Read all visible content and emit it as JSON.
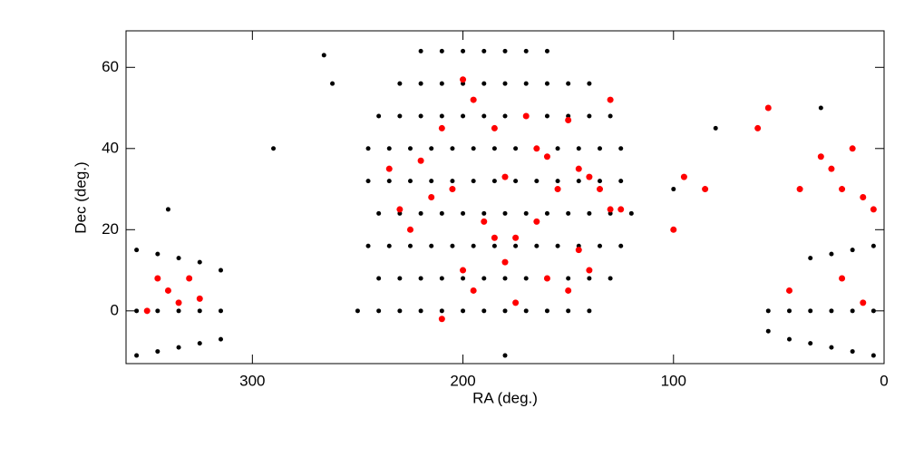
{
  "chart_data": {
    "type": "scatter",
    "x_label": "RA (deg.)",
    "y_label": "Dec (deg.)",
    "xlim": [
      360,
      0
    ],
    "xticks": [
      300,
      200,
      100,
      0
    ],
    "ylim": [
      -13,
      69
    ],
    "yticks": [
      0,
      20,
      40,
      60
    ],
    "grid": false,
    "series": [
      {
        "color": "#000000",
        "x": [
          160,
          170,
          180,
          190,
          200,
          210,
          220,
          140,
          150,
          160,
          170,
          180,
          190,
          200,
          210,
          220,
          230,
          130,
          140,
          150,
          160,
          170,
          180,
          190,
          200,
          210,
          220,
          230,
          240,
          125,
          135,
          145,
          155,
          165,
          175,
          185,
          195,
          205,
          215,
          225,
          235,
          245,
          125,
          135,
          145,
          155,
          165,
          175,
          185,
          195,
          205,
          215,
          225,
          235,
          245,
          120,
          130,
          140,
          150,
          160,
          170,
          180,
          190,
          200,
          210,
          220,
          230,
          240,
          125,
          135,
          145,
          155,
          165,
          175,
          185,
          195,
          205,
          215,
          225,
          235,
          245,
          130,
          140,
          150,
          160,
          170,
          180,
          190,
          200,
          210,
          220,
          230,
          240,
          140,
          150,
          160,
          170,
          180,
          190,
          200,
          210,
          220,
          230,
          240,
          250,
          315,
          325,
          335,
          345,
          355,
          5,
          15,
          25,
          35,
          45,
          55,
          315,
          325,
          335,
          345,
          355,
          5,
          15,
          25,
          35,
          315,
          325,
          335,
          345,
          355,
          5,
          15,
          25,
          35,
          45,
          55,
          262,
          266,
          290,
          100,
          80,
          340,
          30,
          180
        ],
        "values": [
          64,
          64,
          64,
          64,
          64,
          64,
          64,
          56,
          56,
          56,
          56,
          56,
          56,
          56,
          56,
          56,
          56,
          48,
          48,
          48,
          48,
          48,
          48,
          48,
          48,
          48,
          48,
          48,
          48,
          40,
          40,
          40,
          40,
          40,
          40,
          40,
          40,
          40,
          40,
          40,
          40,
          40,
          32,
          32,
          32,
          32,
          32,
          32,
          32,
          32,
          32,
          32,
          32,
          32,
          32,
          24,
          24,
          24,
          24,
          24,
          24,
          24,
          24,
          24,
          24,
          24,
          24,
          24,
          16,
          16,
          16,
          16,
          16,
          16,
          16,
          16,
          16,
          16,
          16,
          16,
          16,
          8,
          8,
          8,
          8,
          8,
          8,
          8,
          8,
          8,
          8,
          8,
          8,
          0,
          0,
          0,
          0,
          0,
          0,
          0,
          0,
          0,
          0,
          0,
          0,
          0,
          0,
          0,
          0,
          0,
          0,
          0,
          0,
          0,
          0,
          0,
          10,
          12,
          13,
          14,
          15,
          16,
          15,
          14,
          13,
          -7,
          -8,
          -9,
          -10,
          -11,
          -11,
          -10,
          -9,
          -8,
          -7,
          -5,
          56,
          63,
          40,
          30,
          45,
          25,
          50,
          -11
        ]
      },
      {
        "color": "#ff0000",
        "x": [
          200,
          195,
          185,
          170,
          160,
          150,
          140,
          130,
          210,
          220,
          230,
          235,
          180,
          165,
          155,
          145,
          135,
          125,
          205,
          190,
          175,
          215,
          225,
          200,
          180,
          160,
          145,
          130,
          195,
          175,
          150,
          210,
          185,
          165,
          140,
          345,
          340,
          335,
          330,
          350,
          325,
          30,
          25,
          20,
          15,
          10,
          5,
          40,
          45,
          20,
          10,
          95,
          85,
          100,
          55,
          60
        ],
        "values": [
          57,
          52,
          45,
          48,
          38,
          47,
          33,
          52,
          45,
          37,
          25,
          35,
          33,
          40,
          30,
          35,
          30,
          25,
          30,
          22,
          18,
          28,
          20,
          10,
          12,
          8,
          15,
          25,
          5,
          2,
          5,
          -2,
          18,
          22,
          10,
          8,
          5,
          2,
          8,
          0,
          3,
          38,
          35,
          30,
          40,
          28,
          25,
          30,
          5,
          8,
          2,
          33,
          30,
          20,
          50,
          45
        ]
      }
    ]
  }
}
